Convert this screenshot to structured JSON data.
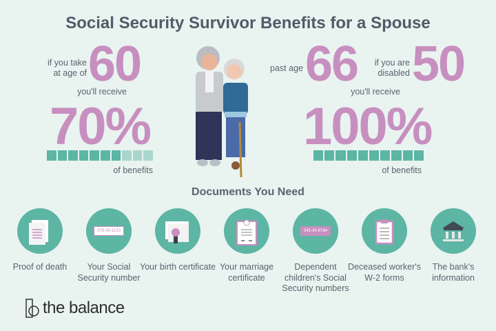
{
  "title": "Social Security Survivor Benefits for a Spouse",
  "left": {
    "condition": [
      "if you take",
      "at age of"
    ],
    "age": "60",
    "receive": "you'll receive",
    "percent": "70%",
    "benefit_fraction": 0.7,
    "suffix": "of benefits"
  },
  "right": {
    "condition1": "past age",
    "age1": "66",
    "condition2": [
      "if you are",
      "disabled"
    ],
    "age2": "50",
    "receive": "you'll receive",
    "percent": "100%",
    "benefit_fraction": 1.0,
    "suffix": "of benefits"
  },
  "colors": {
    "accent_pink": "#c78fbf",
    "teal": "#5db5a4",
    "teal_light": "#a9d6cc",
    "background": "#e9f3f0"
  },
  "documents_heading": "Documents You Need",
  "documents": [
    {
      "icon": "document-icon",
      "label": "Proof of death"
    },
    {
      "icon": "ssn-card-icon",
      "label": "Your Social Security number",
      "card_text": "078-05-1120"
    },
    {
      "icon": "certificate-icon",
      "label": "Your birth certificate"
    },
    {
      "icon": "marriage-certificate-icon",
      "label": "Your marriage certificate"
    },
    {
      "icon": "ssn-card-icon",
      "label": "Dependent children's Social Security numbers",
      "card_text": "345-34-8764"
    },
    {
      "icon": "clipboard-icon",
      "label": "Deceased worker's W-2 forms"
    },
    {
      "icon": "bank-icon",
      "label": "The bank's information"
    }
  ],
  "logo": "the balance"
}
